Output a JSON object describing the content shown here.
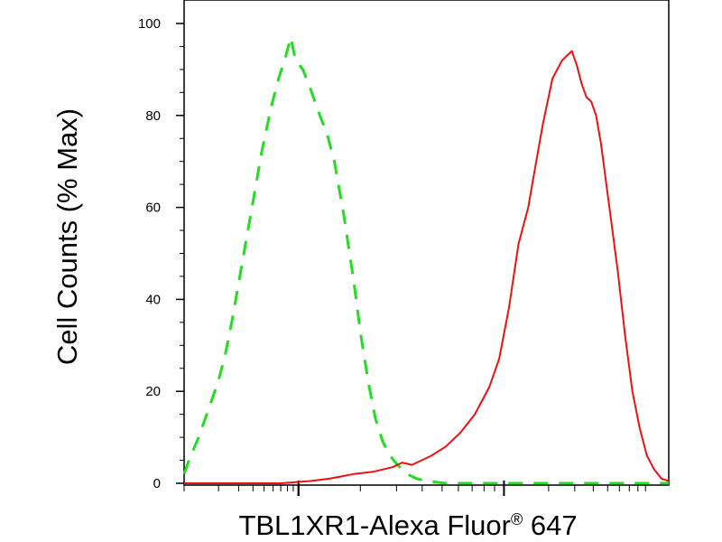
{
  "chart_data": {
    "type": "line",
    "title": "",
    "xlabel": "TBL1XR1-Alexa Fluor",
    "xlabel_mark": "®",
    "xlabel_suffix": " 647",
    "ylabel": "Cell Counts (% Max)",
    "xscale": "log",
    "xlim": [
      0,
      1
    ],
    "ylim": [
      0,
      100
    ],
    "yticks": [
      0,
      20,
      40,
      60,
      80,
      100
    ],
    "grid": false,
    "legend": "none",
    "series": [
      {
        "style": "dashed",
        "color": "#22dd22",
        "points": [
          [
            0.0,
            2
          ],
          [
            0.01,
            5
          ],
          [
            0.03,
            10
          ],
          [
            0.05,
            16
          ],
          [
            0.07,
            22
          ],
          [
            0.085,
            28
          ],
          [
            0.1,
            36
          ],
          [
            0.12,
            48
          ],
          [
            0.14,
            60
          ],
          [
            0.16,
            72
          ],
          [
            0.18,
            82
          ],
          [
            0.195,
            88
          ],
          [
            0.21,
            93
          ],
          [
            0.22,
            97
          ],
          [
            0.23,
            92
          ],
          [
            0.245,
            90
          ],
          [
            0.26,
            86
          ],
          [
            0.28,
            80
          ],
          [
            0.295,
            76
          ],
          [
            0.31,
            70
          ],
          [
            0.33,
            58
          ],
          [
            0.35,
            44
          ],
          [
            0.365,
            32
          ],
          [
            0.38,
            22
          ],
          [
            0.395,
            14
          ],
          [
            0.41,
            9
          ],
          [
            0.425,
            6
          ],
          [
            0.44,
            4
          ],
          [
            0.46,
            2
          ],
          [
            0.48,
            1
          ],
          [
            0.5,
            0.5
          ],
          [
            0.54,
            0
          ],
          [
            1.0,
            0
          ]
        ]
      },
      {
        "style": "solid",
        "color": "#ee1111",
        "points": [
          [
            0.0,
            0
          ],
          [
            0.2,
            0
          ],
          [
            0.26,
            0.5
          ],
          [
            0.3,
            1
          ],
          [
            0.35,
            2
          ],
          [
            0.39,
            2.5
          ],
          [
            0.41,
            3
          ],
          [
            0.43,
            3.5
          ],
          [
            0.45,
            4.5
          ],
          [
            0.47,
            4
          ],
          [
            0.49,
            5
          ],
          [
            0.51,
            6
          ],
          [
            0.54,
            8
          ],
          [
            0.57,
            11
          ],
          [
            0.6,
            15
          ],
          [
            0.63,
            21
          ],
          [
            0.65,
            27
          ],
          [
            0.67,
            38
          ],
          [
            0.69,
            52
          ],
          [
            0.71,
            60
          ],
          [
            0.72,
            66
          ],
          [
            0.74,
            78
          ],
          [
            0.76,
            88
          ],
          [
            0.78,
            92
          ],
          [
            0.8,
            94
          ],
          [
            0.81,
            91
          ],
          [
            0.82,
            87
          ],
          [
            0.83,
            84
          ],
          [
            0.84,
            83
          ],
          [
            0.85,
            80
          ],
          [
            0.86,
            74
          ],
          [
            0.87,
            66
          ],
          [
            0.88,
            58
          ],
          [
            0.895,
            46
          ],
          [
            0.91,
            32
          ],
          [
            0.925,
            20
          ],
          [
            0.94,
            12
          ],
          [
            0.955,
            6
          ],
          [
            0.97,
            3
          ],
          [
            0.985,
            1
          ],
          [
            1.0,
            0.5
          ]
        ]
      }
    ]
  }
}
